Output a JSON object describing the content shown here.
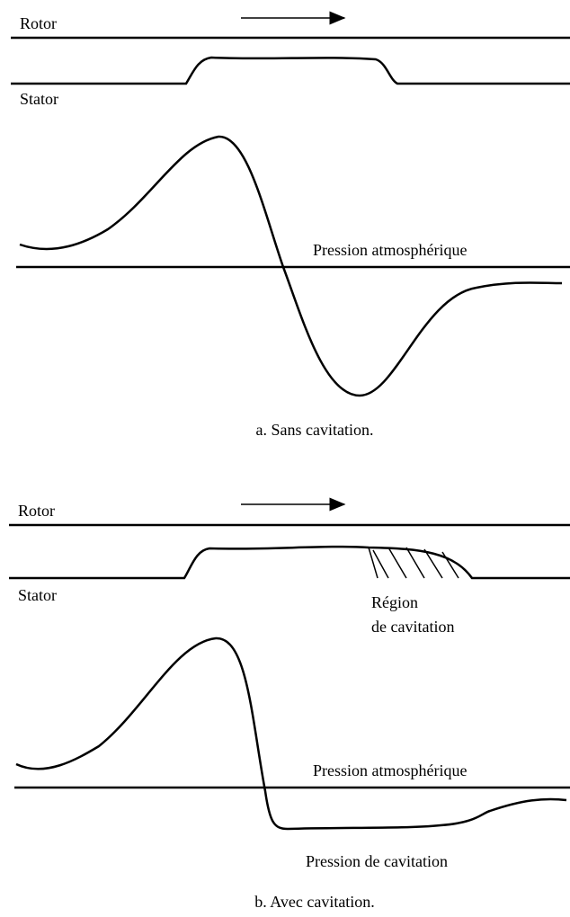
{
  "panels": [
    {
      "rotor_label": "Rotor",
      "stator_label": "Stator",
      "pressure_label": "Pression atmosphérique",
      "caption": "a. Sans cavitation."
    },
    {
      "rotor_label": "Rotor",
      "stator_label": "Stator",
      "region_label": [
        "Région",
        "de cavitation"
      ],
      "pressure_label": "Pression atmosphérique",
      "cavitation_pressure_label": "Pression de cavitation",
      "caption": "b. Avec cavitation."
    }
  ]
}
